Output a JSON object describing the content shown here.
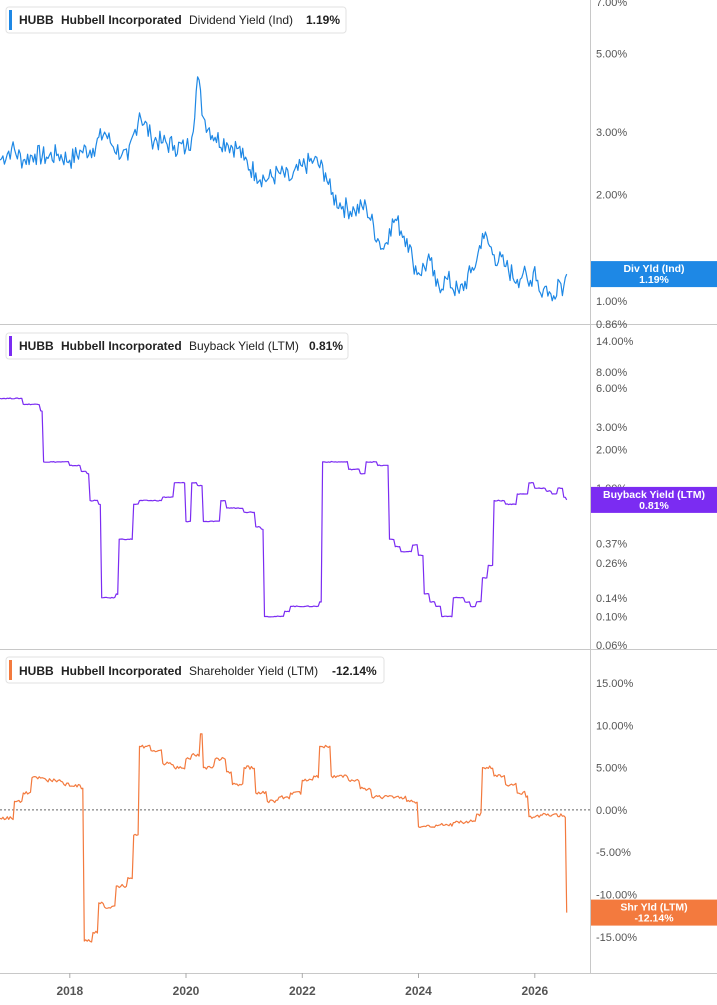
{
  "chart_data": [
    {
      "type": "line",
      "ticker": "HUBB",
      "company": "Hubbell Incorporated",
      "metric": "Dividend Yield (Ind)",
      "current_value": "1.19%",
      "flag_label": "Div Yld (Ind)",
      "flag_value": "1.19%",
      "color": "#1E88E5",
      "yscale": "log",
      "ylim": [
        0.86,
        7.0
      ],
      "yticks": [
        "7.00%",
        "5.00%",
        "3.00%",
        "2.00%",
        "1.00%",
        "0.86%"
      ],
      "ytick_values": [
        7.0,
        5.0,
        3.0,
        2.0,
        1.0,
        0.86
      ],
      "series": [
        {
          "x": [
            2016.8,
            2017.0,
            2017.2,
            2017.4,
            2017.6,
            2017.8,
            2018.0,
            2018.2,
            2018.4,
            2018.6,
            2018.7,
            2018.9,
            2019.0,
            2019.2,
            2019.4,
            2019.6,
            2019.8,
            2020.0,
            2020.1,
            2020.2,
            2020.3,
            2020.5,
            2020.7,
            2020.9,
            2021.0,
            2021.2,
            2021.4,
            2021.6,
            2021.8,
            2022.0,
            2022.2,
            2022.4,
            2022.5,
            2022.7,
            2022.9,
            2023.1,
            2023.3,
            2023.4,
            2023.5,
            2023.6,
            2023.8,
            2023.9,
            2024.0,
            2024.2,
            2024.3,
            2024.5,
            2024.7,
            2024.9,
            2025.0,
            2025.1,
            2025.3,
            2025.5,
            2025.7,
            2025.8,
            2025.9,
            2026.0,
            2026.1,
            2026.2,
            2026.3,
            2026.4,
            2026.5,
            2026.55
          ],
          "y": [
            2.5,
            2.7,
            2.5,
            2.6,
            2.55,
            2.6,
            2.5,
            2.65,
            2.7,
            3.0,
            2.8,
            2.6,
            2.5,
            3.4,
            2.9,
            2.8,
            2.75,
            2.7,
            2.9,
            4.3,
            3.3,
            2.9,
            2.8,
            2.7,
            2.5,
            2.3,
            2.2,
            2.3,
            2.2,
            2.4,
            2.5,
            2.3,
            2.0,
            1.85,
            1.8,
            1.85,
            1.5,
            1.4,
            1.6,
            1.7,
            1.5,
            1.3,
            1.2,
            1.3,
            1.1,
            1.15,
            1.05,
            1.2,
            1.3,
            1.55,
            1.35,
            1.25,
            1.15,
            1.2,
            1.1,
            1.25,
            1.05,
            1.1,
            1.0,
            1.15,
            1.1,
            1.19
          ]
        }
      ]
    },
    {
      "type": "line",
      "ticker": "HUBB",
      "company": "Hubbell Incorporated",
      "metric": "Buyback Yield (LTM)",
      "current_value": "0.81%",
      "flag_label": "Buyback Yield (LTM)",
      "flag_value": "0.81%",
      "color": "#7B2CF2",
      "yscale": "log",
      "ylim": [
        0.06,
        14.0
      ],
      "yticks": [
        "14.00%",
        "8.00%",
        "6.00%",
        "3.00%",
        "2.00%",
        "1.00%",
        "0.37%",
        "0.26%",
        "0.14%",
        "0.10%",
        "0.06%"
      ],
      "ytick_values": [
        14.0,
        8.0,
        6.0,
        3.0,
        2.0,
        1.0,
        0.37,
        0.26,
        0.14,
        0.1,
        0.06
      ],
      "series": [
        {
          "x": [
            2016.8,
            2017.2,
            2017.5,
            2017.55,
            2018.0,
            2018.2,
            2018.3,
            2018.35,
            2018.5,
            2018.55,
            2018.8,
            2018.85,
            2019.0,
            2019.1,
            2019.2,
            2019.6,
            2019.8,
            2020.0,
            2020.1,
            2020.2,
            2020.3,
            2020.4,
            2020.6,
            2020.7,
            2021.0,
            2021.2,
            2021.3,
            2021.35,
            2021.7,
            2021.8,
            2022.3,
            2022.35,
            2022.8,
            2023.0,
            2023.1,
            2023.3,
            2023.5,
            2023.6,
            2023.7,
            2023.9,
            2024.0,
            2024.1,
            2024.2,
            2024.3,
            2024.4,
            2024.5,
            2024.6,
            2024.8,
            2024.9,
            2025.0,
            2025.1,
            2025.2,
            2025.3,
            2025.5,
            2025.7,
            2025.9,
            2026.0,
            2026.2,
            2026.3,
            2026.4,
            2026.5,
            2026.55
          ],
          "y": [
            5.0,
            4.5,
            4.0,
            1.6,
            1.5,
            1.35,
            1.3,
            0.8,
            0.75,
            0.14,
            0.15,
            0.4,
            0.4,
            0.75,
            0.8,
            0.85,
            1.1,
            0.55,
            1.1,
            1.05,
            0.55,
            0.55,
            0.8,
            0.7,
            0.65,
            0.5,
            0.48,
            0.1,
            0.11,
            0.12,
            0.13,
            1.6,
            1.4,
            1.3,
            1.6,
            1.5,
            0.4,
            0.35,
            0.32,
            0.36,
            0.3,
            0.15,
            0.13,
            0.12,
            0.1,
            0.1,
            0.14,
            0.13,
            0.12,
            0.13,
            0.2,
            0.25,
            0.8,
            0.75,
            0.9,
            1.1,
            1.0,
            0.95,
            0.9,
            1.0,
            0.85,
            0.81
          ]
        }
      ]
    },
    {
      "type": "line",
      "ticker": "HUBB",
      "company": "Hubbell Incorporated",
      "metric": "Shareholder Yield (LTM)",
      "current_value": "-12.14%",
      "flag_label": "Shr Yld (LTM)",
      "flag_value": "-12.14%",
      "color": "#F37A3E",
      "yscale": "linear",
      "ylim": [
        -15.5,
        15.0
      ],
      "yticks": [
        "15.00%",
        "10.00%",
        "5.00%",
        "0.00%",
        "-5.00%",
        "-10.00%",
        "-15.00%"
      ],
      "ytick_values": [
        15.0,
        10.0,
        5.0,
        0.0,
        -5.0,
        -10.0,
        -15.0
      ],
      "zero_line": true,
      "series": [
        {
          "x": [
            2016.8,
            2017.0,
            2017.05,
            2017.2,
            2017.3,
            2017.35,
            2017.6,
            2017.9,
            2018.0,
            2018.2,
            2018.25,
            2018.4,
            2018.5,
            2018.6,
            2018.8,
            2019.0,
            2019.1,
            2019.2,
            2019.3,
            2019.4,
            2019.6,
            2019.8,
            2020.0,
            2020.1,
            2020.25,
            2020.3,
            2020.5,
            2020.7,
            2020.8,
            2021.0,
            2021.2,
            2021.4,
            2021.6,
            2021.8,
            2022.0,
            2022.2,
            2022.3,
            2022.5,
            2022.6,
            2022.8,
            2023.0,
            2023.2,
            2023.4,
            2023.6,
            2023.8,
            2024.0,
            2024.05,
            2024.3,
            2024.6,
            2024.9,
            2025.0,
            2025.1,
            2025.3,
            2025.5,
            2025.7,
            2025.85,
            2025.9,
            2026.1,
            2026.3,
            2026.5,
            2026.55
          ],
          "y": [
            -1.0,
            -1.0,
            1.0,
            2.0,
            2.0,
            3.8,
            3.5,
            3.0,
            2.8,
            2.5,
            -15.5,
            -14.5,
            -11.0,
            -11.5,
            -9.0,
            -8.0,
            -3.0,
            7.5,
            7.5,
            7.0,
            5.5,
            5.0,
            6.0,
            6.5,
            9.0,
            5.0,
            6.0,
            4.5,
            3.0,
            5.0,
            2.0,
            1.0,
            1.5,
            2.0,
            3.5,
            4.0,
            7.5,
            4.0,
            4.0,
            3.5,
            2.5,
            1.5,
            1.5,
            1.5,
            1.0,
            -2.0,
            -2.0,
            -1.8,
            -1.5,
            -1.2,
            -0.5,
            5.0,
            4.0,
            3.0,
            2.0,
            1.5,
            -0.8,
            -0.6,
            -0.6,
            -0.7,
            -12.14
          ]
        }
      ]
    }
  ],
  "x_axis": {
    "ticks": [
      "2018",
      "2020",
      "2022",
      "2024",
      "2026"
    ],
    "tick_values": [
      2018,
      2020,
      2022,
      2024,
      2026
    ],
    "range": [
      2016.8,
      2026.95
    ]
  }
}
